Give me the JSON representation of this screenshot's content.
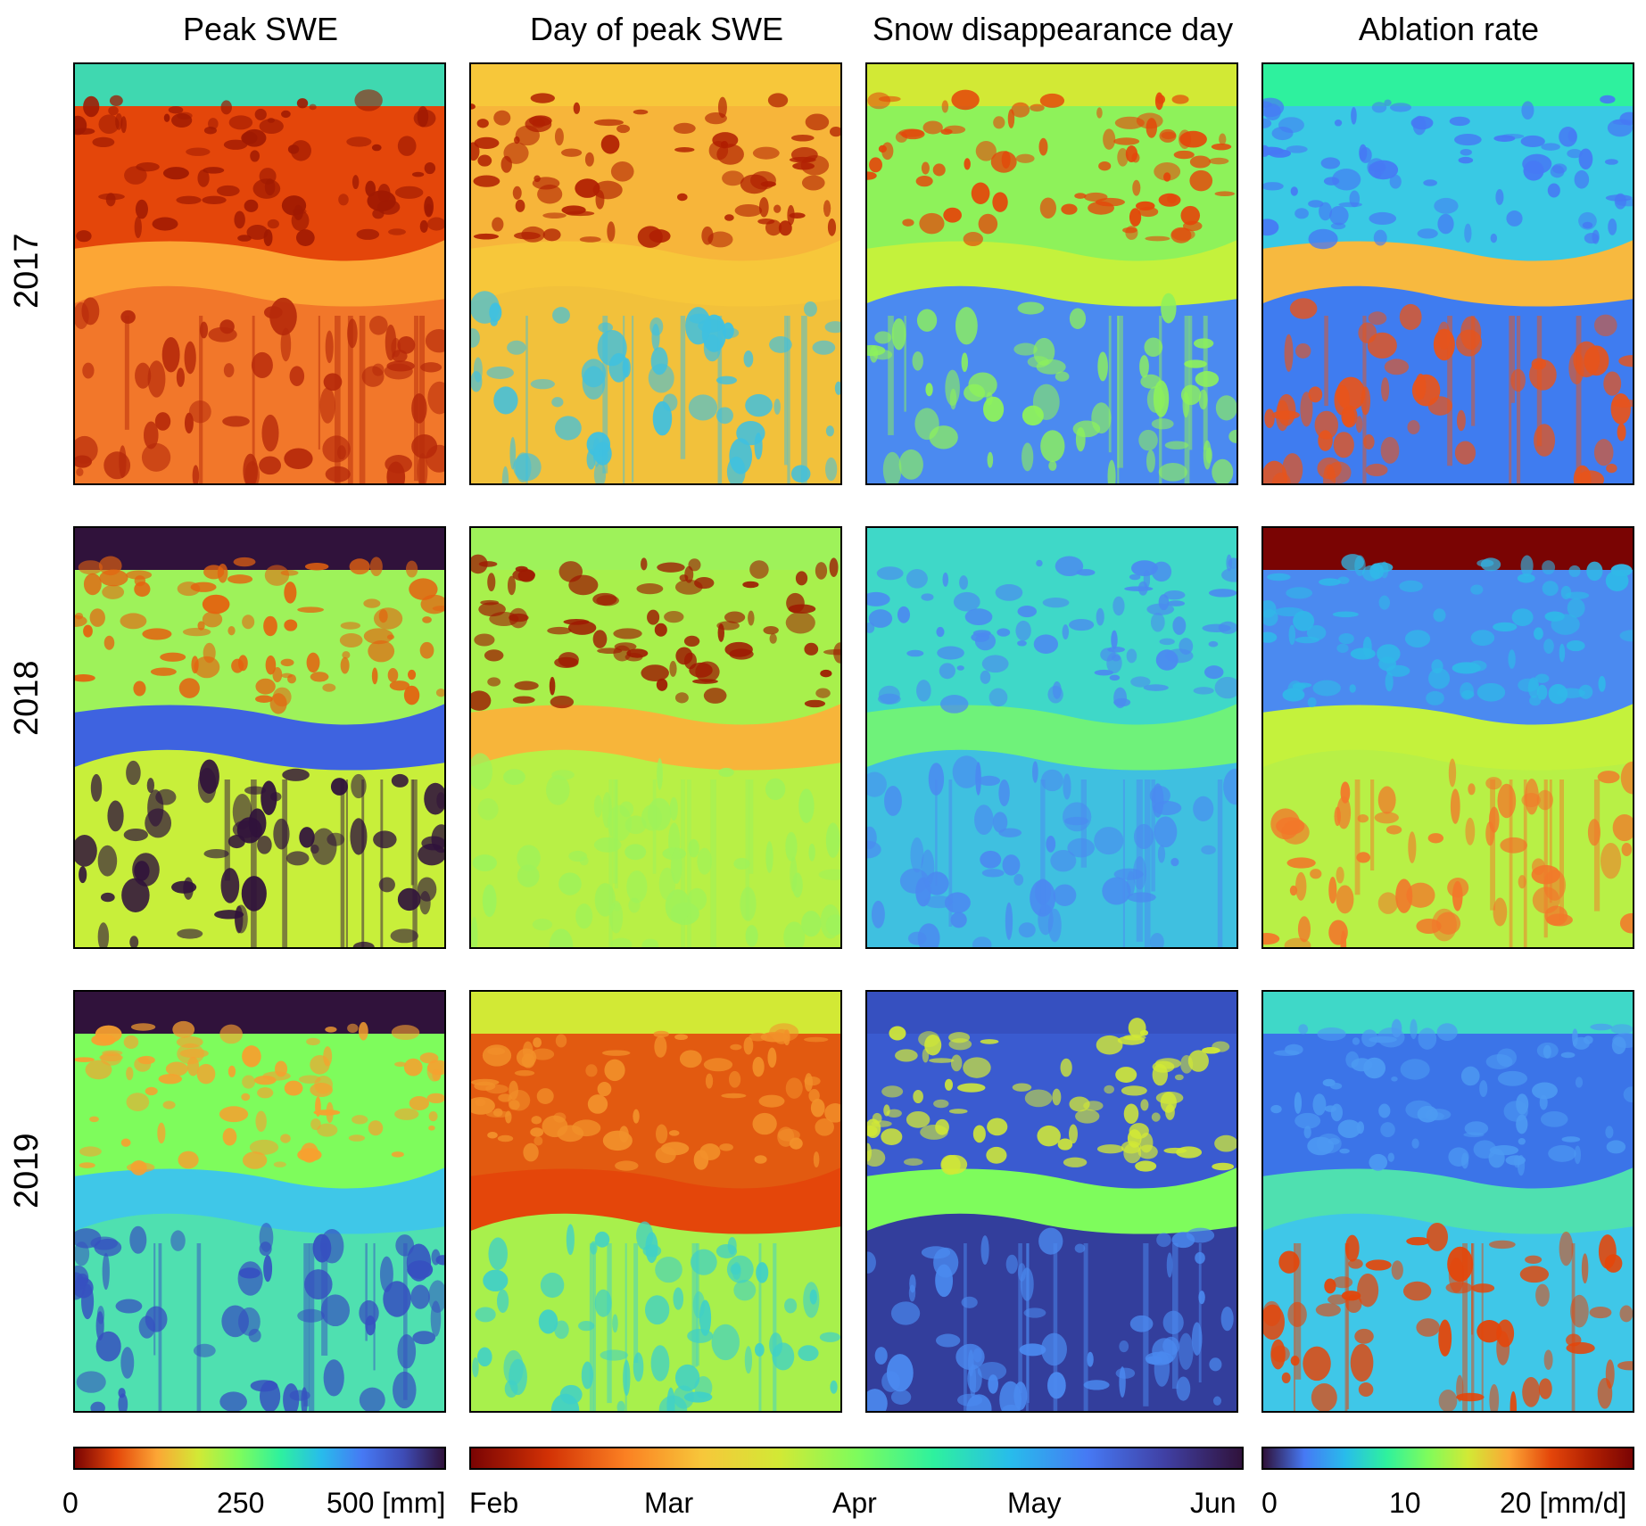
{
  "columns": [
    "Peak SWE",
    "Day of peak SWE",
    "Snow disappearance day",
    "Ablation rate"
  ],
  "rows": [
    "2017",
    "2018",
    "2019"
  ],
  "colorbars": {
    "peak_swe": {
      "ticks": [
        "0",
        "250",
        "500 [mm]"
      ],
      "colors": [
        "#7a0403",
        "#e4460a",
        "#fca635",
        "#d2e935",
        "#7efc5c",
        "#2ef19e",
        "#28bceb",
        "#4679f4",
        "#3e4cb6",
        "#30123b"
      ]
    },
    "dates": {
      "ticks": [
        "Feb",
        "Mar",
        "Apr",
        "May",
        "Jun"
      ],
      "colors": [
        "#7a0403",
        "#d23105",
        "#fb8022",
        "#f7c73a",
        "#d2e935",
        "#7efc5c",
        "#2ef19e",
        "#28bceb",
        "#4679f4",
        "#4040a4",
        "#30123b"
      ]
    },
    "ablation": {
      "ticks": [
        "0",
        "10",
        "20 [mm/d]"
      ],
      "colors": [
        "#30123b",
        "#4679f4",
        "#28bceb",
        "#2ef19e",
        "#7efc5c",
        "#d2e935",
        "#fca635",
        "#e4460a",
        "#b01f02",
        "#7a0403"
      ]
    }
  }
}
